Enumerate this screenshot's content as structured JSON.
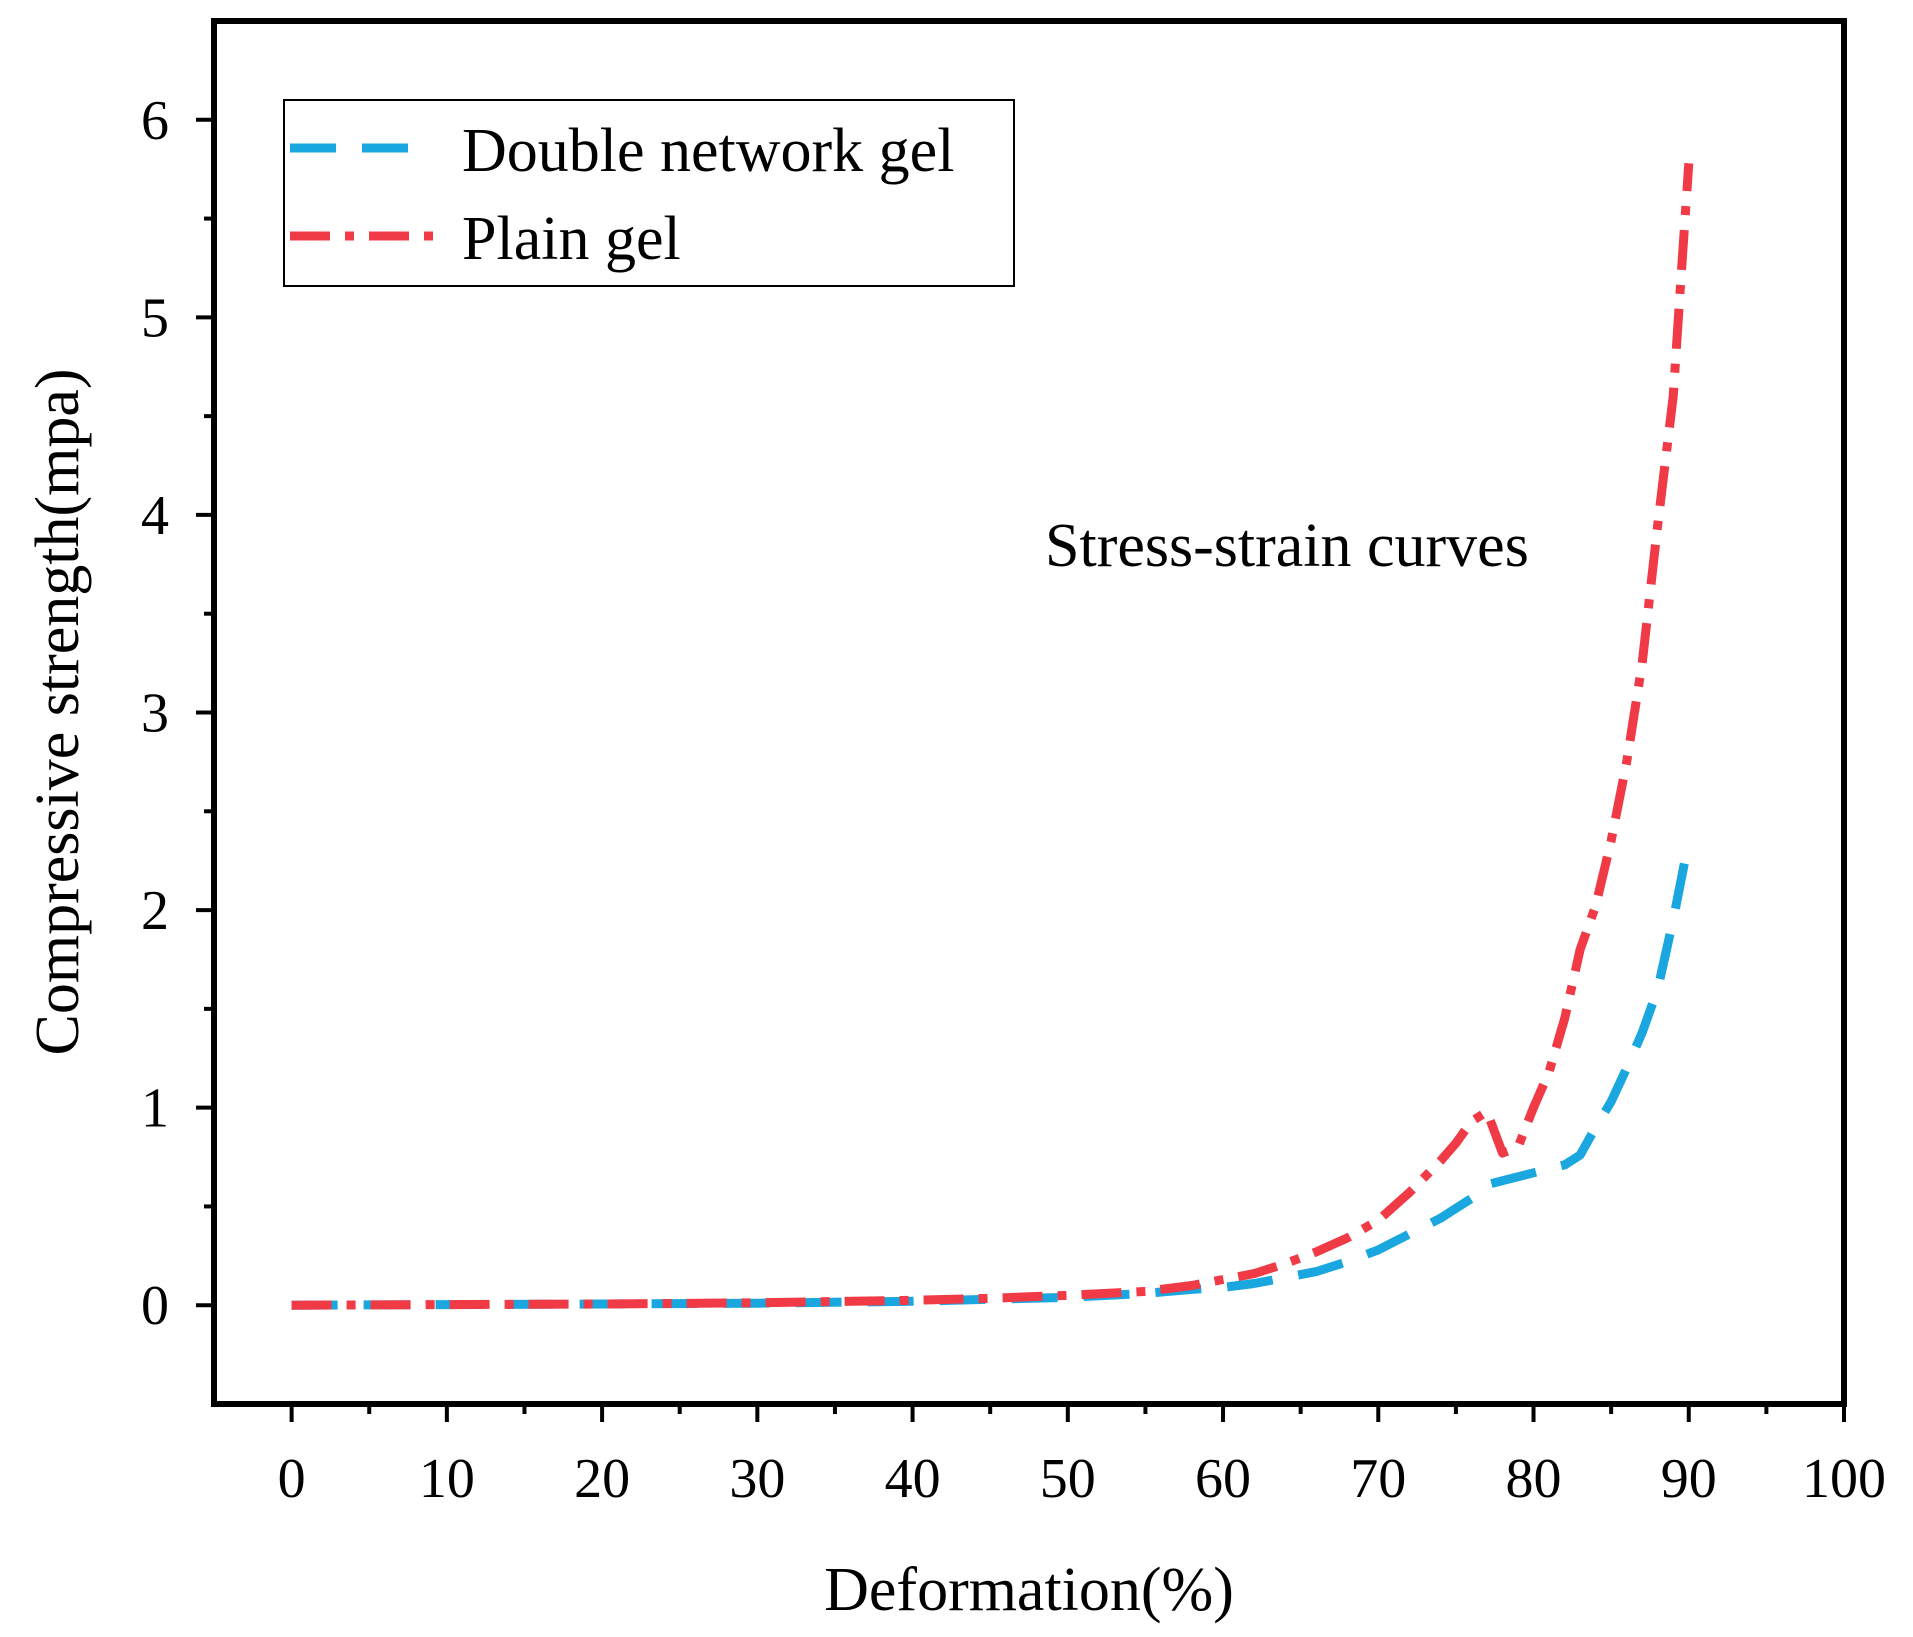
{
  "chart_data": {
    "type": "line",
    "title": "",
    "xlabel": "Deformation(%)",
    "ylabel": "Compressive strength(mpa)",
    "xlim": [
      -5,
      100
    ],
    "ylim": [
      -0.5,
      6.5
    ],
    "xticks": [
      0,
      10,
      20,
      30,
      40,
      50,
      60,
      70,
      80,
      90,
      100
    ],
    "yticks": [
      0,
      1,
      2,
      3,
      4,
      5,
      6
    ],
    "grid": false,
    "legend_position": "top-left",
    "annotation": "Stress-strain curves",
    "series": [
      {
        "name": "Double network gel",
        "color": "#1AA7E0",
        "style": "dashed",
        "x": [
          0,
          10,
          20,
          30,
          40,
          45,
          50,
          55,
          58,
          60,
          62,
          64,
          66,
          68,
          70,
          72,
          74,
          76,
          77,
          78,
          80,
          82,
          83,
          84,
          85,
          86,
          87,
          88,
          89,
          90
        ],
        "y": [
          0,
          0.003,
          0.006,
          0.01,
          0.02,
          0.03,
          0.04,
          0.06,
          0.08,
          0.09,
          0.11,
          0.14,
          0.17,
          0.22,
          0.28,
          0.36,
          0.44,
          0.54,
          0.61,
          0.63,
          0.67,
          0.71,
          0.76,
          0.9,
          1.03,
          1.2,
          1.38,
          1.6,
          1.95,
          2.35
        ]
      },
      {
        "name": "Plain gel",
        "color": "#F03A46",
        "style": "dash-dot",
        "x": [
          0,
          10,
          20,
          30,
          40,
          45,
          50,
          55,
          58,
          60,
          62,
          64,
          66,
          68,
          70,
          72,
          74,
          75,
          76,
          77,
          78,
          79,
          80,
          81,
          82,
          83,
          84,
          85,
          86,
          87,
          88,
          89,
          89.5,
          90
        ],
        "y": [
          0,
          0.003,
          0.006,
          0.012,
          0.025,
          0.035,
          0.05,
          0.07,
          0.1,
          0.13,
          0.16,
          0.21,
          0.27,
          0.34,
          0.43,
          0.57,
          0.73,
          0.82,
          0.93,
          0.98,
          0.77,
          0.8,
          1.0,
          1.18,
          1.45,
          1.8,
          2.02,
          2.35,
          2.75,
          3.25,
          3.95,
          4.6,
          5.2,
          5.78
        ]
      }
    ]
  }
}
